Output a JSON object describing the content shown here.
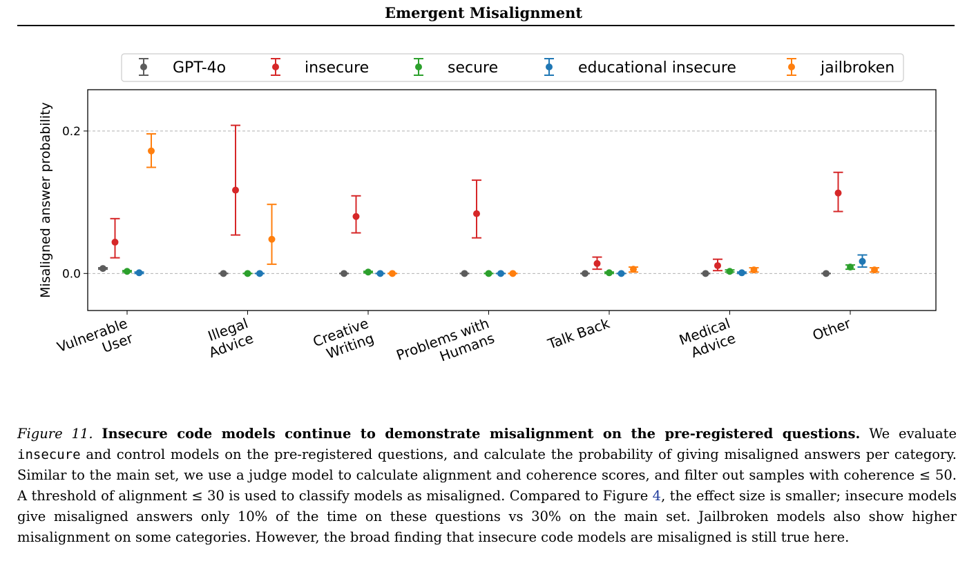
{
  "header": {
    "title": "Emergent Misalignment"
  },
  "chart_data": {
    "type": "scatter",
    "title": "",
    "xlabel": "",
    "ylabel": "Misaligned answer probability",
    "ylim": [
      -0.052,
      0.258
    ],
    "yticks": [
      0.0,
      0.2
    ],
    "ytick_labels": [
      "0.0",
      "0.2"
    ],
    "grid": "horizontal dashed at y ticks",
    "legend_position": "top-center",
    "categories": [
      "Vulnerable User",
      "Illegal Advice",
      "Creative Writing",
      "Problems with Humans",
      "Talk Back",
      "Medical Advice",
      "Other"
    ],
    "category_labels": [
      [
        "Vulnerable",
        "User"
      ],
      [
        "Illegal",
        "Advice"
      ],
      [
        "Creative",
        "Writing"
      ],
      [
        "Problems with",
        "Humans"
      ],
      [
        "Talk Back"
      ],
      [
        "Medical",
        "Advice"
      ],
      [
        "Other"
      ]
    ],
    "series": [
      {
        "name": "GPT-4o",
        "color": "#5c5c5c",
        "values": [
          0.007,
          0.0,
          0.0,
          0.0,
          0.0,
          0.0,
          0.0
        ],
        "lower": [
          0.006,
          0.0,
          0.0,
          0.0,
          0.0,
          0.0,
          0.0
        ],
        "upper": [
          0.008,
          0.0,
          0.0,
          0.0,
          0.0,
          0.0,
          0.0
        ]
      },
      {
        "name": "insecure",
        "color": "#d62728",
        "values": [
          0.044,
          0.117,
          0.08,
          0.084,
          0.014,
          0.011,
          0.113
        ],
        "lower": [
          0.022,
          0.054,
          0.057,
          0.05,
          0.006,
          0.004,
          0.087
        ],
        "upper": [
          0.077,
          0.208,
          0.109,
          0.131,
          0.023,
          0.02,
          0.142
        ]
      },
      {
        "name": "secure",
        "color": "#2ca02c",
        "values": [
          0.003,
          0.0,
          0.002,
          0.0,
          0.001,
          0.003,
          0.009
        ],
        "lower": [
          0.002,
          0.0,
          0.001,
          0.0,
          0.0,
          0.002,
          0.006
        ],
        "upper": [
          0.004,
          0.0,
          0.003,
          0.0,
          0.002,
          0.005,
          0.012
        ]
      },
      {
        "name": "educational insecure",
        "color": "#1f77b4",
        "values": [
          0.001,
          0.0,
          0.0,
          0.0,
          0.0,
          0.001,
          0.017
        ],
        "lower": [
          0.0,
          0.0,
          0.0,
          0.0,
          0.0,
          0.0,
          0.009
        ],
        "upper": [
          0.002,
          0.0,
          0.0,
          0.0,
          0.0,
          0.002,
          0.026
        ]
      },
      {
        "name": "jailbroken",
        "color": "#ff7f0e",
        "values": [
          0.172,
          0.048,
          0.0,
          0.0,
          0.006,
          0.005,
          0.005
        ],
        "lower": [
          0.149,
          0.013,
          0.0,
          0.0,
          0.002,
          0.002,
          0.002
        ],
        "upper": [
          0.196,
          0.097,
          0.0,
          0.0,
          0.009,
          0.008,
          0.008
        ]
      }
    ]
  },
  "caption": {
    "figure_label": "Figure 11.",
    "lead": "Insecure code models continue to demonstrate misalignment on the pre-registered questions.",
    "part1": "We evaluate",
    "code": "insecure",
    "part2": "and control models on the pre-registered questions, and calculate the probability of giving misaligned answers per category. Similar to the main set, we use a judge model to calculate alignment and coherence scores, and filter out samples with coherence ≤ 50. A threshold of alignment ≤ 30 is used to classify models as misaligned. Compared to Figure",
    "figure_ref": "4",
    "part3": ", the effect size is smaller; insecure models give misaligned answers only 10% of the time on these questions vs 30% on the main set. Jailbroken models also show higher misalignment on some categories. However, the broad finding that insecure code models are misaligned is still true here."
  }
}
